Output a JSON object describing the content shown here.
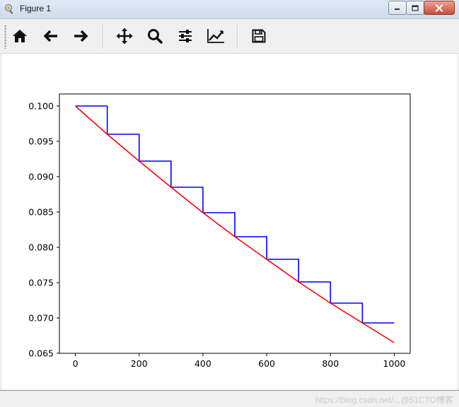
{
  "window": {
    "title": "Figure 1",
    "icons": [
      "app-icon",
      "minimize-icon",
      "maximize-icon",
      "close-icon"
    ]
  },
  "toolbar": {
    "buttons": [
      {
        "name": "home",
        "icon": "home-icon"
      },
      {
        "name": "back",
        "icon": "arrow-left-icon"
      },
      {
        "name": "forward",
        "icon": "arrow-right-icon"
      },
      {
        "name": "pan",
        "icon": "move-icon"
      },
      {
        "name": "zoom",
        "icon": "magnifier-icon"
      },
      {
        "name": "subplots",
        "icon": "sliders-icon"
      },
      {
        "name": "edit-axis",
        "icon": "line-chart-icon"
      },
      {
        "name": "save",
        "icon": "floppy-disk-icon"
      }
    ]
  },
  "statusbar": {
    "watermark": "https://blog.csdn.net/...@51CTO博客"
  },
  "chart_data": {
    "type": "line",
    "xlim": [
      -50,
      1050
    ],
    "ylim": [
      0.065,
      0.1017
    ],
    "xticks": [
      0,
      200,
      400,
      600,
      800,
      1000
    ],
    "xtick_labels": [
      "0",
      "200",
      "400",
      "600",
      "800",
      "1000"
    ],
    "yticks": [
      0.065,
      0.07,
      0.075,
      0.08,
      0.085,
      0.09,
      0.095,
      0.1
    ],
    "ytick_labels": [
      "0.065",
      "0.070",
      "0.075",
      "0.080",
      "0.085",
      "0.090",
      "0.095",
      "0.100"
    ],
    "grid": false,
    "series": [
      {
        "color": "#0000ff",
        "style": "step",
        "x": [
          0,
          100,
          100,
          200,
          200,
          300,
          300,
          400,
          400,
          500,
          500,
          600,
          600,
          700,
          700,
          800,
          800,
          900,
          900,
          1000
        ],
        "y": [
          0.1,
          0.1,
          0.096,
          0.096,
          0.0922,
          0.0922,
          0.0885,
          0.0885,
          0.0849,
          0.0849,
          0.0815,
          0.0815,
          0.0783,
          0.0783,
          0.0751,
          0.0751,
          0.0721,
          0.0721,
          0.0693,
          0.0693
        ]
      },
      {
        "color": "#ff0000",
        "style": "line",
        "x": [
          0,
          100,
          200,
          300,
          400,
          500,
          600,
          700,
          800,
          900,
          1000
        ],
        "y": [
          0.1,
          0.096,
          0.0922,
          0.0885,
          0.0849,
          0.0815,
          0.0783,
          0.0751,
          0.0721,
          0.0693,
          0.0665
        ]
      }
    ]
  }
}
